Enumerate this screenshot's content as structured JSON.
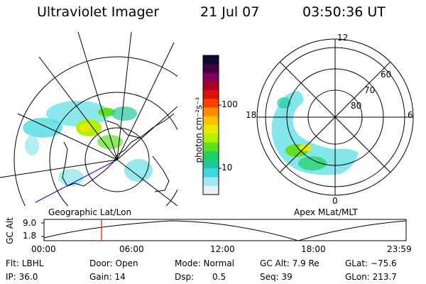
{
  "header": {
    "title": "Ultraviolet Imager",
    "date": "21 Jul 07",
    "time": "03:50:36 UT"
  },
  "colorbar": {
    "unit_label": "photon cm⁻²s⁻¹",
    "ticks": [
      "100",
      "10"
    ],
    "colors": [
      "#0a0a30",
      "#400040",
      "#800060",
      "#b00020",
      "#e01010",
      "#ff4000",
      "#ff8c00",
      "#ffc000",
      "#e8e800",
      "#b0f000",
      "#60e020",
      "#20d060",
      "#20c8a0",
      "#40d8e0",
      "#a0e8f0",
      "#e8f0f8"
    ]
  },
  "left_map": {
    "label": "Geographic Lat/Lon"
  },
  "right_map": {
    "label": "Apex MLat/MLT",
    "mlt_labels": {
      "top": "12",
      "left": "18",
      "right": "6",
      "bottom": "0"
    },
    "lat_labels": [
      "60",
      "70",
      "80"
    ]
  },
  "timeline": {
    "y_label": "GC Alt",
    "y_ticks": [
      "9.0",
      "1.8"
    ],
    "x_ticks": [
      "00:00",
      "06:00",
      "12:00",
      "18:00",
      "23:59"
    ],
    "marker_time": "03:50:36"
  },
  "status": {
    "flt": "Flt: LBHL",
    "ip": "IP: 36.0",
    "door": "Door: Open",
    "gain": "Gain: 14",
    "mode": "Mode: Normal",
    "dsp_label": "Dsp:",
    "dsp_value": "0.5",
    "gcalt": "GC Alt: 7.9 Re",
    "seq": "Seq: 39",
    "glat": "GLat: −75.6",
    "glon": "GLon: 213.7"
  },
  "accent_colors": {
    "marker": "#ff0000",
    "track": "#0000cc"
  }
}
